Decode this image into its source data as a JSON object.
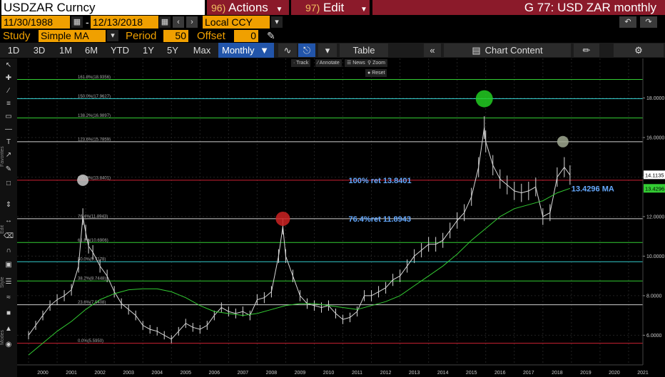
{
  "titlebar": {
    "security": "USDZAR Curncy",
    "actions_num": "96)",
    "actions_label": "Actions",
    "edit_num": "97)",
    "edit_label": "Edit",
    "chart_title": "G 77: USD ZAR monthly"
  },
  "daterange": {
    "start": "11/30/1988",
    "sep": "-",
    "end": "12/13/2018",
    "currency": "Local CCY"
  },
  "study": {
    "label": "Study",
    "value": "Simple MA",
    "period_label": "Period",
    "period_value": "50",
    "offset_label": "Offset",
    "offset_value": "0"
  },
  "toolbar": {
    "ranges": [
      "1D",
      "3D",
      "1M",
      "6M",
      "YTD",
      "1Y",
      "5Y",
      "Max"
    ],
    "frequency": "Monthly",
    "table": "Table",
    "chart_content": "Chart Content"
  },
  "overlay_buttons": {
    "track": "Track",
    "annotate": "Annotate",
    "news": "News",
    "zoom": "Zoom",
    "reset": "Reset"
  },
  "side_labels": {
    "favorites": "Favorites",
    "edit": "Edit",
    "style": "Style",
    "modes": "Modes"
  },
  "colors": {
    "price": "#d8d8d8",
    "ma": "#33cc33",
    "level_green": "#33cc33",
    "level_cyan": "#33cccc",
    "level_white": "#cfcfcf",
    "level_red": "#cc2233",
    "annotation_text": "#66aaff",
    "accent": "#f0a000",
    "title_bar": "#8b1a2a"
  },
  "chart_data": {
    "type": "line",
    "series": [
      {
        "name": "",
        "x": [
          2000.0,
          2000.25,
          2000.5,
          2000.75,
          2001.0,
          2001.25,
          2001.5,
          2001.75,
          2001.9,
          2002.0,
          2002.1,
          2002.25,
          2002.5,
          2002.75,
          2003.0,
          2003.25,
          2003.5,
          2003.75,
          2004.0,
          2004.25,
          2004.5,
          2004.75,
          2005.0,
          2005.25,
          2005.5,
          2005.75,
          2006.0,
          2006.25,
          2006.5,
          2006.75,
          2007.0,
          2007.25,
          2007.5,
          2007.75,
          2008.0,
          2008.25,
          2008.5,
          2008.75,
          2008.9,
          2009.0,
          2009.25,
          2009.5,
          2009.75,
          2010.0,
          2010.25,
          2010.5,
          2010.75,
          2011.0,
          2011.25,
          2011.5,
          2011.75,
          2012.0,
          2012.25,
          2012.5,
          2012.75,
          2013.0,
          2013.25,
          2013.5,
          2013.75,
          2014.0,
          2014.25,
          2014.5,
          2014.75,
          2015.0,
          2015.25,
          2015.5,
          2015.75,
          2015.95,
          2016.0,
          2016.25,
          2016.5,
          2016.75,
          2017.0,
          2017.25,
          2017.5,
          2017.75,
          2018.0,
          2018.25,
          2018.5,
          2018.75,
          2018.95
        ],
        "values": [
          6.0,
          6.5,
          7.0,
          7.5,
          7.8,
          8.0,
          8.3,
          9.5,
          12.0,
          11.2,
          10.5,
          10.2,
          9.5,
          9.0,
          8.2,
          7.6,
          7.3,
          7.0,
          6.5,
          6.3,
          6.2,
          6.0,
          5.8,
          6.2,
          6.6,
          6.4,
          6.3,
          6.5,
          7.0,
          7.4,
          7.2,
          7.1,
          7.2,
          7.0,
          7.8,
          7.9,
          8.2,
          10.0,
          11.5,
          10.0,
          9.0,
          8.0,
          7.6,
          7.5,
          7.4,
          7.5,
          7.1,
          6.8,
          6.9,
          7.2,
          8.0,
          8.0,
          8.2,
          8.4,
          8.8,
          9.0,
          9.5,
          10.0,
          10.3,
          10.6,
          10.6,
          10.8,
          11.3,
          11.8,
          12.2,
          13.0,
          14.5,
          16.5,
          15.8,
          14.6,
          13.9,
          13.6,
          13.3,
          13.2,
          13.3,
          13.5,
          12.0,
          12.2,
          14.0,
          14.5,
          14.1
        ]
      },
      {
        "name": "MA",
        "x": [
          2000.0,
          2000.5,
          2001.0,
          2001.5,
          2002.0,
          2002.5,
          2003.0,
          2003.5,
          2004.0,
          2004.5,
          2005.0,
          2005.5,
          2006.0,
          2006.5,
          2007.0,
          2007.5,
          2008.0,
          2008.5,
          2009.0,
          2009.5,
          2010.0,
          2010.5,
          2011.0,
          2011.5,
          2012.0,
          2012.5,
          2013.0,
          2013.5,
          2014.0,
          2014.5,
          2015.0,
          2015.5,
          2016.0,
          2016.5,
          2017.0,
          2017.5,
          2018.0,
          2018.5,
          2018.95
        ],
        "values": [
          5.0,
          5.6,
          6.2,
          6.7,
          7.3,
          7.8,
          8.1,
          8.3,
          8.35,
          8.35,
          8.2,
          7.9,
          7.5,
          7.2,
          7.1,
          7.0,
          7.1,
          7.3,
          7.5,
          7.6,
          7.6,
          7.5,
          7.4,
          7.3,
          7.5,
          7.7,
          8.0,
          8.5,
          9.0,
          9.5,
          10.1,
          10.8,
          11.4,
          12.0,
          12.4,
          12.6,
          12.8,
          13.2,
          13.43
        ]
      }
    ],
    "yticks": [
      "6.0000",
      "8.0000",
      "10.0000",
      "12.0000",
      "14.0000",
      "16.0000",
      "18.0000"
    ],
    "xticks": [
      "2000",
      "2001",
      "2002",
      "2003",
      "2004",
      "2005",
      "2006",
      "2007",
      "2008",
      "2009",
      "2010",
      "2011",
      "2012",
      "2013",
      "2014",
      "2015",
      "2016",
      "2017",
      "2018",
      "2019",
      "2020",
      "2021"
    ],
    "ylim": [
      4.5,
      20
    ],
    "xlim": [
      1999.6,
      2021.5
    ],
    "last_price": "14.1135",
    "last_ma": "13.4296",
    "levels": [
      {
        "label": "161.8%(18.9356)",
        "value": 18.9356,
        "color": "#33cc33"
      },
      {
        "label": "150.0%(17.9627)",
        "value": 17.9627,
        "color": "#33cccc"
      },
      {
        "label": "138.2%(16.9897)",
        "value": 16.9897,
        "color": "#33cc33"
      },
      {
        "label": "123.6%(15.7859)",
        "value": 15.7859,
        "color": "#cfcfcf"
      },
      {
        "label": "100.0%(13.8401)",
        "value": 13.8401,
        "color": "#cc2233"
      },
      {
        "label": "76.4%(11.8943)",
        "value": 11.8943,
        "color": "#cfcfcf"
      },
      {
        "label": "61.8%(10.6906)",
        "value": 10.6906,
        "color": "#33cc33"
      },
      {
        "label": "50.0%(9.7178)",
        "value": 9.7178,
        "color": "#33cccc"
      },
      {
        "label": "38.2%(8.7448)",
        "value": 8.7448,
        "color": "#33cc33"
      },
      {
        "label": "23.6%(7.5408)",
        "value": 7.5408,
        "color": "#cfcfcf"
      },
      {
        "label": "0.0%(5.5950)",
        "value": 5.595,
        "color": "#cc2233"
      }
    ],
    "annotations": [
      {
        "text": "100% ret 13.8401",
        "x": 2011.2,
        "y": 13.84
      },
      {
        "text": "76.4%ret 11.8943",
        "x": 2011.2,
        "y": 11.89
      },
      {
        "text": "13.4296 MA",
        "x": 2019.0,
        "y": 13.43
      }
    ],
    "markers": [
      {
        "x": 2001.9,
        "y": 13.84,
        "color": "#c8c8c8"
      },
      {
        "x": 2008.9,
        "y": 11.89,
        "color": "#cc2222"
      },
      {
        "x": 2015.95,
        "y": 17.96,
        "color": "#22cc22"
      },
      {
        "x": 2018.7,
        "y": 15.79,
        "color": "#a0a890"
      }
    ]
  }
}
